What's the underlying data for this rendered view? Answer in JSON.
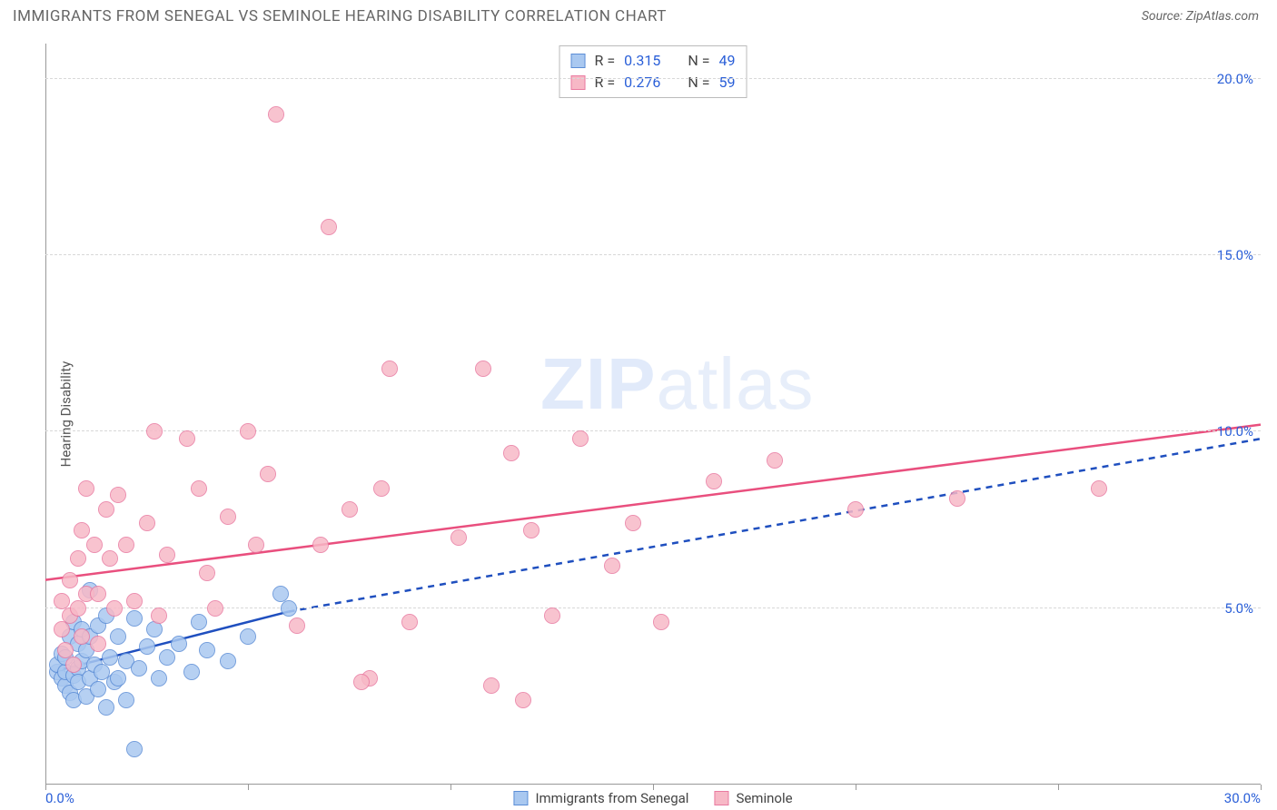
{
  "header": {
    "title": "IMMIGRANTS FROM SENEGAL VS SEMINOLE HEARING DISABILITY CORRELATION CHART",
    "source_prefix": "Source: ",
    "source_name": "ZipAtlas.com"
  },
  "watermark": {
    "part1": "ZIP",
    "part2": "atlas"
  },
  "chart": {
    "type": "scatter",
    "background_color": "#ffffff",
    "grid_color": "#d8d8d8",
    "axis_color": "#999999",
    "tick_label_color": "#2a5fd8",
    "yaxis_label": "Hearing Disability",
    "xlim": [
      0,
      30
    ],
    "ylim": [
      0,
      21
    ],
    "x_ticks": [
      0,
      5,
      10,
      15,
      20,
      25,
      30
    ],
    "x_tick_labels": {
      "min": "0.0%",
      "max": "30.0%"
    },
    "y_ticks": [
      {
        "v": 5,
        "label": "5.0%"
      },
      {
        "v": 10,
        "label": "10.0%"
      },
      {
        "v": 15,
        "label": "15.0%"
      },
      {
        "v": 20,
        "label": "20.0%"
      }
    ],
    "marker_radius": 9,
    "marker_opacity_fill": 0.35,
    "series": [
      {
        "id": "senegal",
        "label": "Immigrants from Senegal",
        "fill_color": "#a9c8f0",
        "stroke_color": "#5b8dd6",
        "line_color": "#1f4fbf",
        "R": "0.315",
        "N": "49",
        "trend_solid": {
          "x1": 0.2,
          "y1": 3.2,
          "x2": 6.0,
          "y2": 4.9
        },
        "trend_dash": {
          "x1": 6.0,
          "y1": 4.9,
          "x2": 30.0,
          "y2": 9.8
        },
        "points": [
          [
            0.3,
            3.2
          ],
          [
            0.3,
            3.4
          ],
          [
            0.4,
            3.0
          ],
          [
            0.4,
            3.7
          ],
          [
            0.5,
            2.8
          ],
          [
            0.5,
            3.2
          ],
          [
            0.5,
            3.6
          ],
          [
            0.6,
            4.2
          ],
          [
            0.6,
            2.6
          ],
          [
            0.7,
            3.1
          ],
          [
            0.7,
            4.6
          ],
          [
            0.7,
            2.4
          ],
          [
            0.8,
            3.3
          ],
          [
            0.8,
            4.0
          ],
          [
            0.8,
            2.9
          ],
          [
            0.9,
            4.4
          ],
          [
            0.9,
            3.5
          ],
          [
            1.0,
            2.5
          ],
          [
            1.0,
            3.8
          ],
          [
            1.1,
            3.0
          ],
          [
            1.1,
            4.2
          ],
          [
            1.1,
            5.5
          ],
          [
            1.2,
            3.4
          ],
          [
            1.3,
            2.7
          ],
          [
            1.3,
            4.5
          ],
          [
            1.4,
            3.2
          ],
          [
            1.5,
            2.2
          ],
          [
            1.5,
            4.8
          ],
          [
            1.6,
            3.6
          ],
          [
            1.7,
            2.9
          ],
          [
            1.8,
            4.2
          ],
          [
            1.8,
            3.0
          ],
          [
            2.0,
            3.5
          ],
          [
            2.0,
            2.4
          ],
          [
            2.2,
            4.7
          ],
          [
            2.3,
            3.3
          ],
          [
            2.5,
            3.9
          ],
          [
            2.7,
            4.4
          ],
          [
            2.8,
            3.0
          ],
          [
            3.0,
            3.6
          ],
          [
            3.3,
            4.0
          ],
          [
            3.6,
            3.2
          ],
          [
            3.8,
            4.6
          ],
          [
            4.0,
            3.8
          ],
          [
            4.5,
            3.5
          ],
          [
            5.0,
            4.2
          ],
          [
            5.8,
            5.4
          ],
          [
            6.0,
            5.0
          ],
          [
            2.2,
            1.0
          ]
        ]
      },
      {
        "id": "seminole",
        "label": "Seminole",
        "fill_color": "#f7b8c6",
        "stroke_color": "#e97aa0",
        "line_color": "#e94f7e",
        "R": "0.276",
        "N": "59",
        "trend_solid": {
          "x1": 0.0,
          "y1": 5.8,
          "x2": 30.0,
          "y2": 10.2
        },
        "trend_dash": null,
        "points": [
          [
            0.4,
            4.4
          ],
          [
            0.4,
            5.2
          ],
          [
            0.5,
            3.8
          ],
          [
            0.6,
            4.8
          ],
          [
            0.6,
            5.8
          ],
          [
            0.7,
            3.4
          ],
          [
            0.8,
            5.0
          ],
          [
            0.8,
            6.4
          ],
          [
            0.9,
            4.2
          ],
          [
            0.9,
            7.2
          ],
          [
            1.0,
            5.4
          ],
          [
            1.0,
            8.4
          ],
          [
            1.2,
            6.8
          ],
          [
            1.3,
            5.4
          ],
          [
            1.3,
            4.0
          ],
          [
            1.5,
            7.8
          ],
          [
            1.6,
            6.4
          ],
          [
            1.7,
            5.0
          ],
          [
            1.8,
            8.2
          ],
          [
            2.0,
            6.8
          ],
          [
            2.2,
            5.2
          ],
          [
            2.5,
            7.4
          ],
          [
            2.7,
            10.0
          ],
          [
            2.8,
            4.8
          ],
          [
            3.0,
            6.5
          ],
          [
            3.5,
            9.8
          ],
          [
            3.8,
            8.4
          ],
          [
            4.0,
            6.0
          ],
          [
            4.2,
            5.0
          ],
          [
            4.5,
            7.6
          ],
          [
            5.0,
            10.0
          ],
          [
            5.2,
            6.8
          ],
          [
            5.5,
            8.8
          ],
          [
            5.7,
            19.0
          ],
          [
            6.2,
            4.5
          ],
          [
            6.8,
            6.8
          ],
          [
            7.0,
            15.8
          ],
          [
            7.5,
            7.8
          ],
          [
            8.0,
            3.0
          ],
          [
            8.3,
            8.4
          ],
          [
            8.5,
            11.8
          ],
          [
            9.0,
            4.6
          ],
          [
            10.2,
            7.0
          ],
          [
            10.8,
            11.8
          ],
          [
            11.0,
            2.8
          ],
          [
            11.5,
            9.4
          ],
          [
            12.0,
            7.2
          ],
          [
            12.5,
            4.8
          ],
          [
            13.2,
            9.8
          ],
          [
            14.0,
            6.2
          ],
          [
            14.5,
            7.4
          ],
          [
            15.2,
            4.6
          ],
          [
            16.5,
            8.6
          ],
          [
            18.0,
            9.2
          ],
          [
            20.0,
            7.8
          ],
          [
            22.5,
            8.1
          ],
          [
            26.0,
            8.4
          ],
          [
            7.8,
            2.9
          ],
          [
            11.8,
            2.4
          ]
        ]
      }
    ],
    "stats_labels": {
      "R": "R =",
      "N": "N ="
    },
    "legend_position": "top-center",
    "bottom_legend_position": "bottom-center"
  }
}
